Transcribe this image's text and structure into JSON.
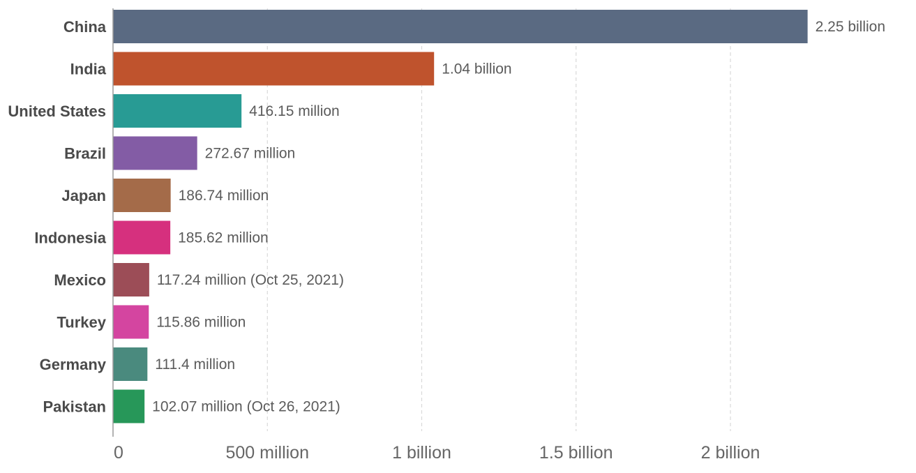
{
  "chart_data": {
    "type": "bar",
    "orientation": "horizontal",
    "title": "",
    "xlabel": "",
    "ylabel": "",
    "xlim": [
      0,
      2250000000
    ],
    "grid": true,
    "categories": [
      "China",
      "India",
      "United States",
      "Brazil",
      "Japan",
      "Indonesia",
      "Mexico",
      "Turkey",
      "Germany",
      "Pakistan"
    ],
    "values": [
      2250000000,
      1040000000,
      416150000,
      272670000,
      186740000,
      185620000,
      117240000,
      115860000,
      111400000,
      102070000
    ],
    "value_labels": [
      "2.25 billion",
      "1.04 billion",
      "416.15 million",
      "272.67 million",
      "186.74 million",
      "185.62 million",
      "117.24 million (Oct 25, 2021)",
      "115.86 million",
      "111.4 million",
      "102.07 million (Oct 26, 2021)"
    ],
    "colors": [
      "#5a6a82",
      "#bf532d",
      "#289b94",
      "#835ca5",
      "#a46b49",
      "#d6307e",
      "#9c4d57",
      "#d445a0",
      "#4a8a7e",
      "#279759"
    ],
    "ticks": [
      {
        "value": 0,
        "label": "0"
      },
      {
        "value": 500000000,
        "label": "500 million"
      },
      {
        "value": 1000000000,
        "label": "1 billion"
      },
      {
        "value": 1500000000,
        "label": "1.5 billion"
      },
      {
        "value": 2000000000,
        "label": "2 billion"
      }
    ]
  }
}
